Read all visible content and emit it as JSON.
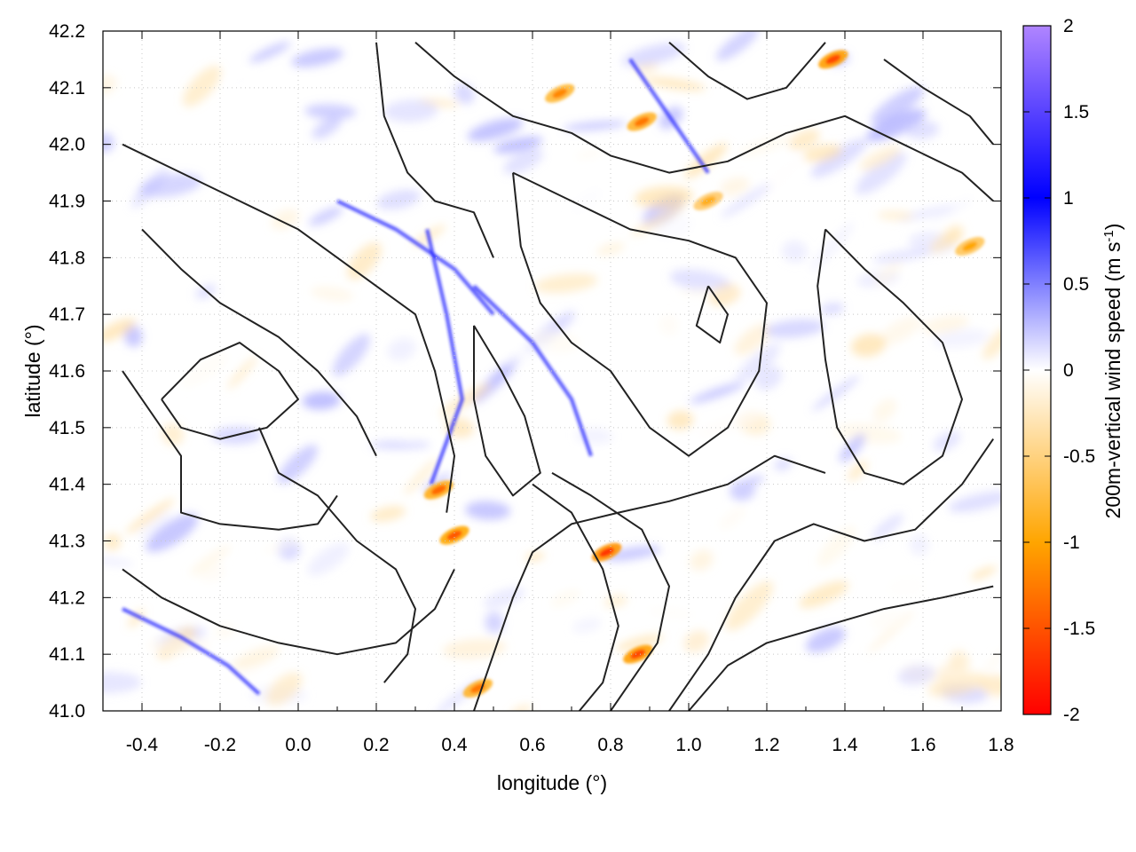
{
  "chart_data": {
    "type": "heatmap",
    "title": "",
    "xlabel": "longitude (°)",
    "ylabel": "latitude (°)",
    "colorbar_label_main": "200m-vertical wind speed (m s",
    "colorbar_label_sup": "-1",
    "colorbar_label_close": ")",
    "xlim": [
      -0.5,
      1.8
    ],
    "ylim": [
      41.0,
      42.2
    ],
    "x_ticks": [
      "-0.4",
      "-0.2",
      "0.0",
      "0.2",
      "0.4",
      "0.6",
      "0.8",
      "1.0",
      "1.2",
      "1.4",
      "1.6",
      "1.8"
    ],
    "x_tick_values": [
      -0.4,
      -0.2,
      0.0,
      0.2,
      0.4,
      0.6,
      0.8,
      1.0,
      1.2,
      1.4,
      1.6,
      1.8
    ],
    "y_ticks": [
      "41.0",
      "41.1",
      "41.2",
      "41.3",
      "41.4",
      "41.5",
      "41.6",
      "41.7",
      "41.8",
      "41.9",
      "42.0",
      "42.1",
      "42.2"
    ],
    "y_tick_values": [
      41.0,
      41.1,
      41.2,
      41.3,
      41.4,
      41.5,
      41.6,
      41.7,
      41.8,
      41.9,
      42.0,
      42.1,
      42.2
    ],
    "colorbar_range": [
      -2,
      2
    ],
    "colorbar_ticks": [
      "2",
      "1.5",
      "1",
      "0.5",
      "0",
      "-0.5",
      "-1",
      "-1.5",
      "-2"
    ],
    "colorbar_tick_values": [
      2,
      1.5,
      1,
      0.5,
      0,
      -0.5,
      -1,
      -1.5,
      -2
    ],
    "colormap": [
      {
        "value": -2,
        "color": "#ff0000"
      },
      {
        "value": -1,
        "color": "#ffa500"
      },
      {
        "value": 0,
        "color": "#ffffff"
      },
      {
        "value": 1,
        "color": "#0000ff"
      },
      {
        "value": 2,
        "color": "#b085ff"
      }
    ],
    "grid": true,
    "contour_color": "#222222",
    "features": {
      "strong_updraft_lines": [
        [
          [
            0.45,
            41.75
          ],
          [
            0.6,
            41.65
          ],
          [
            0.7,
            41.55
          ],
          [
            0.75,
            41.45
          ]
        ],
        [
          [
            0.33,
            41.85
          ],
          [
            0.38,
            41.7
          ],
          [
            0.42,
            41.55
          ],
          [
            0.34,
            41.4
          ]
        ],
        [
          [
            -0.45,
            41.18
          ],
          [
            -0.3,
            41.13
          ],
          [
            -0.18,
            41.08
          ],
          [
            -0.1,
            41.03
          ]
        ],
        [
          [
            0.1,
            41.9
          ],
          [
            0.25,
            41.85
          ],
          [
            0.4,
            41.78
          ],
          [
            0.5,
            41.7
          ]
        ],
        [
          [
            0.85,
            42.15
          ],
          [
            0.95,
            42.05
          ],
          [
            1.05,
            41.95
          ]
        ]
      ],
      "strong_downdraft_spots": [
        {
          "lon": 0.36,
          "lat": 41.39,
          "w": -1.4
        },
        {
          "lon": 0.4,
          "lat": 41.31,
          "w": -1.5
        },
        {
          "lon": 0.79,
          "lat": 41.28,
          "w": -1.7
        },
        {
          "lon": 0.87,
          "lat": 41.1,
          "w": -1.6
        },
        {
          "lon": 0.46,
          "lat": 41.04,
          "w": -1.3
        },
        {
          "lon": 1.37,
          "lat": 42.15,
          "w": -1.6
        },
        {
          "lon": 0.88,
          "lat": 42.04,
          "w": -1.3
        },
        {
          "lon": 0.67,
          "lat": 42.09,
          "w": -1.2
        },
        {
          "lon": 1.72,
          "lat": 41.82,
          "w": -1.0
        },
        {
          "lon": 1.05,
          "lat": 41.9,
          "w": -0.9
        }
      ],
      "contours": [
        [
          [
            -0.45,
            42.0
          ],
          [
            -0.3,
            41.95
          ],
          [
            -0.15,
            41.9
          ],
          [
            0.0,
            41.85
          ],
          [
            0.1,
            41.8
          ],
          [
            0.2,
            41.75
          ],
          [
            0.3,
            41.7
          ],
          [
            0.35,
            41.6
          ],
          [
            0.4,
            41.45
          ],
          [
            0.38,
            41.35
          ]
        ],
        [
          [
            -0.4,
            41.85
          ],
          [
            -0.3,
            41.78
          ],
          [
            -0.2,
            41.72
          ],
          [
            -0.05,
            41.66
          ],
          [
            0.05,
            41.6
          ],
          [
            0.15,
            41.52
          ],
          [
            0.2,
            41.45
          ]
        ],
        [
          [
            -0.45,
            41.6
          ],
          [
            -0.35,
            41.5
          ],
          [
            -0.3,
            41.45
          ],
          [
            -0.3,
            41.35
          ],
          [
            -0.2,
            41.33
          ],
          [
            -0.05,
            41.32
          ],
          [
            0.05,
            41.33
          ],
          [
            0.1,
            41.38
          ]
        ],
        [
          [
            -0.45,
            41.25
          ],
          [
            -0.35,
            41.2
          ],
          [
            -0.2,
            41.15
          ],
          [
            -0.05,
            41.12
          ],
          [
            0.1,
            41.1
          ],
          [
            0.25,
            41.12
          ],
          [
            0.35,
            41.18
          ],
          [
            0.4,
            41.25
          ]
        ],
        [
          [
            0.45,
            41.0
          ],
          [
            0.5,
            41.1
          ],
          [
            0.55,
            41.2
          ],
          [
            0.6,
            41.28
          ],
          [
            0.7,
            41.33
          ],
          [
            0.82,
            41.35
          ],
          [
            0.95,
            41.37
          ],
          [
            1.1,
            41.4
          ],
          [
            1.22,
            41.45
          ],
          [
            1.35,
            41.42
          ]
        ],
        [
          [
            0.95,
            41.0
          ],
          [
            1.05,
            41.1
          ],
          [
            1.12,
            41.2
          ],
          [
            1.22,
            41.3
          ],
          [
            1.32,
            41.33
          ],
          [
            1.45,
            41.3
          ],
          [
            1.58,
            41.32
          ],
          [
            1.7,
            41.4
          ],
          [
            1.78,
            41.48
          ]
        ],
        [
          [
            1.0,
            41.0
          ],
          [
            1.1,
            41.08
          ],
          [
            1.2,
            41.12
          ],
          [
            1.35,
            41.15
          ],
          [
            1.5,
            41.18
          ],
          [
            1.65,
            41.2
          ],
          [
            1.78,
            41.22
          ]
        ],
        [
          [
            0.55,
            41.95
          ],
          [
            0.7,
            41.9
          ],
          [
            0.85,
            41.85
          ],
          [
            1.0,
            41.83
          ],
          [
            1.12,
            41.8
          ],
          [
            1.2,
            41.72
          ],
          [
            1.18,
            41.6
          ],
          [
            1.1,
            41.5
          ],
          [
            1.0,
            41.45
          ],
          [
            0.9,
            41.5
          ],
          [
            0.8,
            41.6
          ],
          [
            0.7,
            41.65
          ],
          [
            0.62,
            41.72
          ],
          [
            0.57,
            41.82
          ],
          [
            0.55,
            41.95
          ]
        ],
        [
          [
            1.35,
            41.85
          ],
          [
            1.45,
            41.78
          ],
          [
            1.55,
            41.72
          ],
          [
            1.65,
            41.65
          ],
          [
            1.7,
            41.55
          ],
          [
            1.65,
            41.45
          ],
          [
            1.55,
            41.4
          ],
          [
            1.45,
            41.42
          ],
          [
            1.38,
            41.5
          ],
          [
            1.35,
            41.62
          ],
          [
            1.33,
            41.75
          ],
          [
            1.35,
            41.85
          ]
        ],
        [
          [
            0.3,
            42.18
          ],
          [
            0.4,
            42.12
          ],
          [
            0.55,
            42.05
          ],
          [
            0.7,
            42.02
          ],
          [
            0.8,
            41.98
          ],
          [
            0.95,
            41.95
          ],
          [
            1.1,
            41.97
          ],
          [
            1.25,
            42.02
          ],
          [
            1.4,
            42.05
          ],
          [
            1.55,
            42.0
          ],
          [
            1.7,
            41.95
          ],
          [
            1.78,
            41.9
          ]
        ],
        [
          [
            0.2,
            42.18
          ],
          [
            0.22,
            42.05
          ],
          [
            0.28,
            41.95
          ],
          [
            0.35,
            41.9
          ],
          [
            0.45,
            41.88
          ],
          [
            0.5,
            41.8
          ]
        ],
        [
          [
            -0.1,
            41.5
          ],
          [
            -0.05,
            41.42
          ],
          [
            0.05,
            41.38
          ],
          [
            0.15,
            41.3
          ],
          [
            0.25,
            41.25
          ],
          [
            0.3,
            41.18
          ],
          [
            0.28,
            41.1
          ],
          [
            0.22,
            41.05
          ]
        ],
        [
          [
            0.6,
            41.4
          ],
          [
            0.7,
            41.35
          ],
          [
            0.78,
            41.25
          ],
          [
            0.82,
            41.15
          ],
          [
            0.78,
            41.05
          ],
          [
            0.72,
            41.0
          ]
        ],
        [
          [
            0.65,
            41.42
          ],
          [
            0.75,
            41.38
          ],
          [
            0.88,
            41.32
          ],
          [
            0.95,
            41.22
          ],
          [
            0.92,
            41.12
          ],
          [
            0.85,
            41.05
          ],
          [
            0.8,
            41.0
          ]
        ],
        [
          [
            1.5,
            42.15
          ],
          [
            1.6,
            42.1
          ],
          [
            1.72,
            42.05
          ],
          [
            1.78,
            42.0
          ]
        ],
        [
          [
            0.95,
            42.18
          ],
          [
            1.05,
            42.12
          ],
          [
            1.15,
            42.08
          ],
          [
            1.25,
            42.1
          ],
          [
            1.35,
            42.18
          ]
        ],
        [
          [
            0.45,
            41.68
          ],
          [
            0.52,
            41.6
          ],
          [
            0.58,
            41.52
          ],
          [
            0.62,
            41.42
          ],
          [
            0.55,
            41.38
          ],
          [
            0.48,
            41.45
          ],
          [
            0.45,
            41.55
          ],
          [
            0.45,
            41.68
          ]
        ],
        [
          [
            1.05,
            41.75
          ],
          [
            1.1,
            41.7
          ],
          [
            1.08,
            41.65
          ],
          [
            1.02,
            41.68
          ],
          [
            1.05,
            41.75
          ]
        ],
        [
          [
            -0.35,
            41.55
          ],
          [
            -0.25,
            41.62
          ],
          [
            -0.15,
            41.65
          ],
          [
            -0.05,
            41.6
          ],
          [
            0.0,
            41.55
          ],
          [
            -0.08,
            41.5
          ],
          [
            -0.2,
            41.48
          ],
          [
            -0.3,
            41.5
          ],
          [
            -0.35,
            41.55
          ]
        ]
      ]
    }
  }
}
